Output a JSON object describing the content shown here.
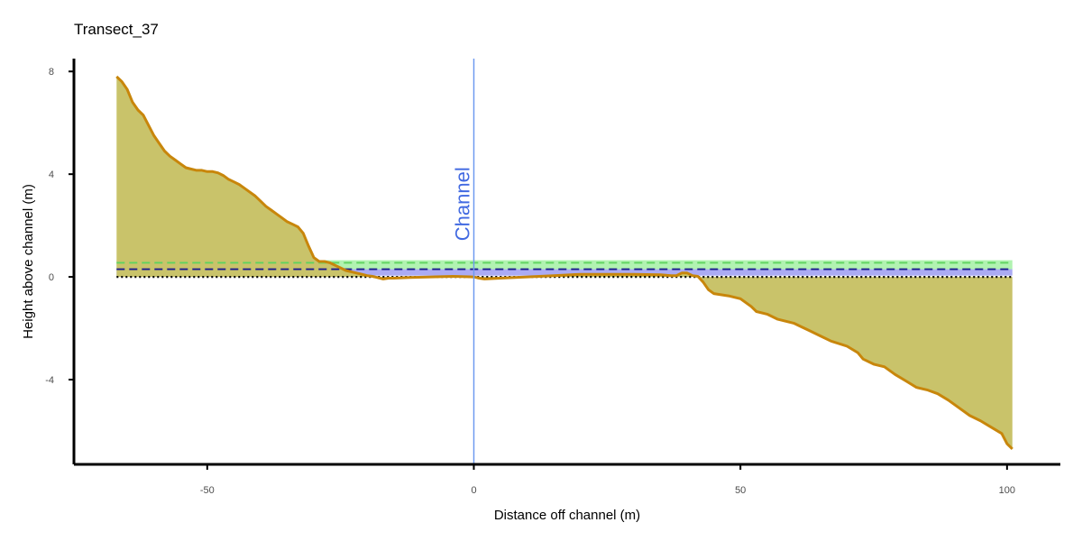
{
  "chart_data": {
    "type": "area",
    "title": "Transect_37",
    "xlabel": "Distance off channel (m)",
    "ylabel": "Height above channel (m)",
    "xlim": [
      -75,
      110
    ],
    "ylim": [
      -7.3,
      8.5
    ],
    "x_ticks": [
      -50,
      0,
      50,
      100
    ],
    "y_ticks": [
      -4,
      0,
      4,
      8
    ],
    "grid": false,
    "legend": "none",
    "channel_marker": {
      "x": 0,
      "label": "Channel",
      "color": "#6f9bf0"
    },
    "reference_lines": [
      {
        "y": 0.55,
        "style": "dashed",
        "color": "#5fd35f"
      },
      {
        "y": 0.3,
        "style": "dashed",
        "color": "#1a1a8c"
      },
      {
        "y": 0.0,
        "style": "dotted",
        "color": "#000000"
      }
    ],
    "bands": [
      {
        "y0": 0.3,
        "y1": 0.65,
        "color": "#90ee90"
      },
      {
        "y0": 0.05,
        "y1": 0.3,
        "color": "#8888ee"
      }
    ],
    "fill_color": "#c9c36a",
    "line_color": "#c8860b",
    "series": [
      {
        "x": [
          -67,
          -66,
          -65,
          -64,
          -63,
          -62,
          -61,
          -60,
          -59,
          -58,
          -57,
          -56,
          -55,
          -54,
          -53,
          -52,
          -51,
          -50,
          -49,
          -48,
          -47,
          -46,
          -45,
          -44,
          -43,
          -42,
          -41,
          -40,
          -39,
          -38,
          -37,
          -36,
          -35,
          -34,
          -33,
          -32,
          -31,
          -30,
          -29,
          -28,
          -27,
          -26,
          -25,
          -24,
          -23,
          -22,
          -21,
          -20,
          -19,
          -18,
          -17,
          -16,
          -15,
          -12,
          -8,
          -4,
          0,
          1,
          2,
          5,
          10,
          15,
          20,
          25,
          30,
          35,
          37,
          38,
          39,
          40,
          41,
          42,
          43,
          44,
          45,
          48,
          50,
          51,
          52,
          53,
          55,
          57,
          60,
          63,
          65,
          67,
          70,
          72,
          73,
          75,
          77,
          79,
          81,
          83,
          85,
          87,
          89,
          91,
          93,
          95,
          97,
          99,
          100,
          101
        ],
        "y": [
          7.8,
          7.6,
          7.3,
          6.8,
          6.5,
          6.3,
          5.9,
          5.5,
          5.2,
          4.9,
          4.7,
          4.55,
          4.4,
          4.25,
          4.2,
          4.15,
          4.15,
          4.1,
          4.1,
          4.05,
          3.95,
          3.8,
          3.7,
          3.6,
          3.45,
          3.3,
          3.15,
          2.95,
          2.75,
          2.6,
          2.45,
          2.3,
          2.15,
          2.05,
          1.95,
          1.7,
          1.2,
          0.75,
          0.6,
          0.6,
          0.55,
          0.45,
          0.35,
          0.25,
          0.2,
          0.15,
          0.1,
          0.05,
          0.02,
          -0.03,
          -0.08,
          -0.05,
          -0.05,
          -0.02,
          0.0,
          0.02,
          0.0,
          -0.05,
          -0.08,
          -0.05,
          0.0,
          0.05,
          0.1,
          0.1,
          0.1,
          0.08,
          0.05,
          0.05,
          0.15,
          0.15,
          0.05,
          0.02,
          -0.2,
          -0.5,
          -0.65,
          -0.75,
          -0.85,
          -1.0,
          -1.15,
          -1.35,
          -1.45,
          -1.65,
          -1.8,
          -2.1,
          -2.3,
          -2.5,
          -2.7,
          -2.95,
          -3.2,
          -3.4,
          -3.5,
          -3.8,
          -4.05,
          -4.3,
          -4.4,
          -4.55,
          -4.8,
          -5.1,
          -5.4,
          -5.6,
          -5.85,
          -6.1,
          -6.5,
          -6.7
        ]
      }
    ]
  }
}
